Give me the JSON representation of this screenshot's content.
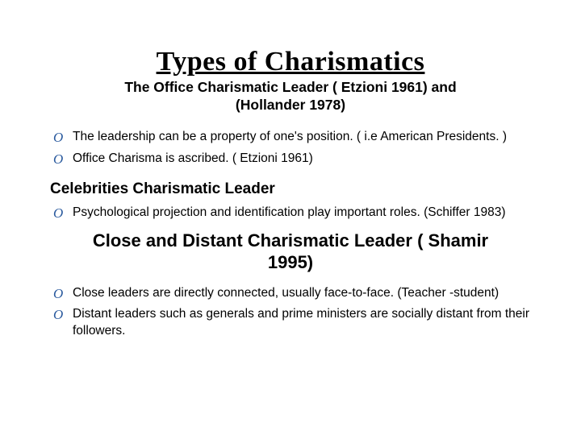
{
  "colors": {
    "background": "#ffffff",
    "text": "#000000",
    "bullet_marker": "#2a5a9e"
  },
  "fonts": {
    "title_family": "Georgia, 'Times New Roman', serif",
    "body_family": "Arial, sans-serif",
    "marker_family": "'Brush Script MT', cursive",
    "title_size_pt": 26,
    "subtitle_size_pt": 13,
    "heading_size_pt": 14,
    "big_heading_size_pt": 16,
    "body_size_pt": 12
  },
  "title": "Types of Charismatics",
  "subtitle_line1": "The Office Charismatic Leader ( Etzioni 1961) and",
  "subtitle_line2": "(Hollander 1978)",
  "bullet_marker": "O",
  "section1": {
    "items": [
      "The leadership can be a property of one's position. ( i.e American Presidents. )",
      "Office Charisma is ascribed. ( Etzioni 1961)"
    ]
  },
  "section2": {
    "heading": "Celebrities Charismatic Leader",
    "items": [
      "Psychological projection and identification play important roles. (Schiffer 1983)"
    ]
  },
  "section3": {
    "heading_line1": "Close and Distant Charismatic Leader ( Shamir",
    "heading_line2": "1995)",
    "items": [
      "Close leaders are directly connected, usually face-to-face. (Teacher -student)",
      "Distant leaders such as generals and prime ministers are socially distant from their followers."
    ]
  }
}
